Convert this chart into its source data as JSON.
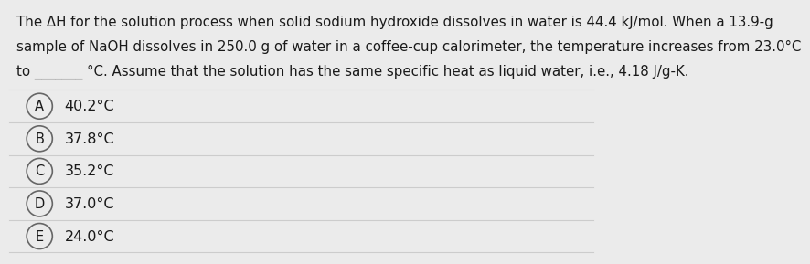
{
  "question_lines": [
    "The ΔH for the solution process when solid sodium hydroxide dissolves in water is 44.4 kJ/mol. When a 13.9-g",
    "sample of NaOH dissolves in 250.0 g of water in a coffee-cup calorimeter, the temperature increases from 23.0°C",
    "to _______ °C. Assume that the solution has the same specific heat as liquid water, i.e., 4.18 J/g-K."
  ],
  "choices": [
    {
      "letter": "A",
      "text": "40.2°C"
    },
    {
      "letter": "B",
      "text": "37.8°C"
    },
    {
      "letter": "C",
      "text": "35.2°C"
    },
    {
      "letter": "D",
      "text": "37.0°C"
    },
    {
      "letter": "E",
      "text": "24.0°C"
    }
  ],
  "background_color": "#ebebeb",
  "choice_border_color": "#cccccc",
  "text_color": "#1a1a1a",
  "circle_edge_color": "#666666",
  "circle_face_color": "#ebebeb",
  "font_size_question": 10.8,
  "font_size_choices": 11.5,
  "font_size_letters": 10.5
}
